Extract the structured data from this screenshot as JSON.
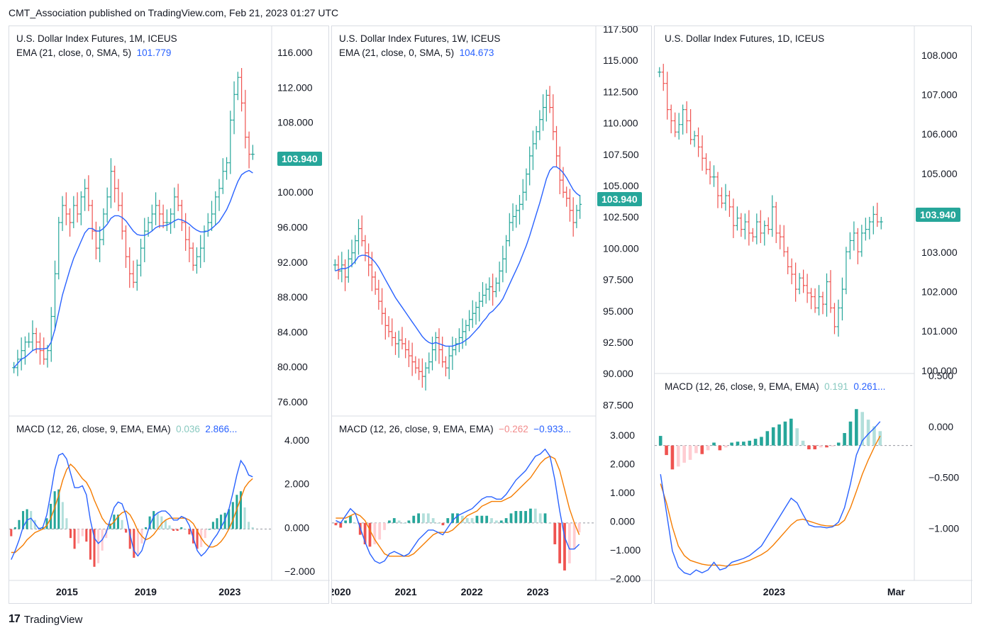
{
  "header": {
    "published": "CMT_Association published on TradingView.com, Feb 21, 2023 01:27 UTC"
  },
  "footer": {
    "brand": "TradingView",
    "logo": "17"
  },
  "colors": {
    "up": "#26a69a",
    "down": "#ef5350",
    "ema": "#2962ff",
    "signal": "#f57c00",
    "badge": "#26a69a",
    "grid": "#d9dce3"
  },
  "panels": [
    {
      "title": "U.S. Dollar Index Futures, 1M, ICEUS",
      "ema_legend": "EMA (21, close, 0, SMA, 5)",
      "ema_value": "101.779",
      "badge": "103.940",
      "price_ticks": [
        "116.000",
        "112.000",
        "108.000",
        "104.000",
        "100.000",
        "96.000",
        "92.000",
        "88.000",
        "84.000",
        "80.000",
        "76.000"
      ],
      "macd_legend": "MACD (12, 26, close, 9, EMA, EMA)",
      "macd_v1": "0.036",
      "macd_v2": "2.866...",
      "macd_ticks": [
        "4.000",
        "2.000",
        "0.000",
        "−2.000"
      ],
      "x_ticks": [
        "2015",
        "2019",
        "2023"
      ]
    },
    {
      "title": "U.S. Dollar Index Futures, 1W, ICEUS",
      "ema_legend": "EMA (21, close, 0, SMA, 5)",
      "ema_value": "104.673",
      "badge": "103.940",
      "price_ticks": [
        "117.500",
        "115.000",
        "112.500",
        "110.000",
        "107.500",
        "105.000",
        "102.500",
        "100.000",
        "97.500",
        "95.000",
        "92.500",
        "90.000",
        "87.500"
      ],
      "macd_legend": "MACD (12, 26, close, 9, EMA, EMA)",
      "macd_v1": "−0.262",
      "macd_v2": "−0.933...",
      "macd_ticks": [
        "3.000",
        "2.000",
        "1.000",
        "0.000",
        "−1.000",
        "−2.000"
      ],
      "x_ticks": [
        "2020",
        "2021",
        "2022",
        "2023"
      ]
    },
    {
      "title": "U.S. Dollar Index Futures, 1D, ICEUS",
      "badge": "103.940",
      "price_ticks": [
        "108.000",
        "107.000",
        "106.000",
        "105.000",
        "104.000",
        "103.000",
        "102.000",
        "101.000",
        "100.000"
      ],
      "macd_legend": "MACD (12, 26, close, 9, EMA, EMA)",
      "macd_v1": "0.191",
      "macd_v2": "0.261...",
      "macd_ticks": [
        "0.500",
        "0.000",
        "−0.500",
        "−1.000"
      ],
      "x_ticks": [
        "2023",
        "Mar"
      ]
    }
  ],
  "chart_data": [
    {
      "type": "bar",
      "title": "U.S. Dollar Index Futures, 1M, ICEUS",
      "ylim": [
        74,
        118
      ],
      "closes": [
        79,
        80,
        81,
        82,
        82,
        83,
        82,
        81,
        80,
        81,
        85,
        90,
        96,
        98,
        97,
        96,
        98,
        97,
        99,
        100,
        98,
        95,
        93,
        94,
        97,
        99,
        102,
        100,
        98,
        95,
        92,
        90,
        89,
        91,
        93,
        95,
        96,
        97,
        98,
        97,
        96,
        96,
        97,
        99,
        98,
        96,
        94,
        93,
        91,
        92,
        93,
        95,
        96,
        97,
        99,
        100,
        102,
        103,
        108,
        111,
        113,
        110,
        106,
        104,
        104
      ],
      "ema": [
        79,
        79.5,
        80,
        80.2,
        80.6,
        81,
        81.2,
        81.2,
        81.2,
        81.3,
        82,
        83.5,
        85.5,
        87.5,
        89,
        90.5,
        91.8,
        92.8,
        93.8,
        94.8,
        95.3,
        95.3,
        95,
        95,
        95.3,
        95.8,
        96.5,
        96.8,
        96.8,
        96.6,
        96.2,
        95.6,
        95,
        94.6,
        94.5,
        94.5,
        94.7,
        95,
        95.4,
        95.6,
        95.6,
        95.7,
        95.9,
        96.2,
        96.4,
        96.3,
        96.1,
        95.8,
        95.4,
        95.1,
        94.9,
        94.9,
        95,
        95.3,
        95.7,
        96.1,
        96.8,
        97.5,
        98.5,
        99.7,
        100.8,
        101.6,
        101.9,
        102.1,
        101.8
      ],
      "macd": {
        "ylim": [
          -2.7,
          5.1
        ],
        "line": [
          -1.7,
          -1.2,
          -0.6,
          0.1,
          0.5,
          0.6,
          0.3,
          0,
          0.1,
          0.8,
          2,
          3.3,
          4.1,
          4.2,
          3.9,
          3.1,
          2.3,
          2.3,
          2.4,
          1.9,
          0.5,
          -0.5,
          -0.8,
          -0.6,
          -0.2,
          0.5,
          1.2,
          1.5,
          1.4,
          0.8,
          -0.3,
          -1.2,
          -1.5,
          -1.2,
          -0.5,
          0.2,
          0.7,
          0.9,
          1,
          1,
          0.8,
          0.5,
          0.5,
          0.7,
          0.6,
          0.2,
          -0.5,
          -1.2,
          -1.5,
          -1.3,
          -1,
          -0.6,
          -0.3,
          0.1,
          0.5,
          1.1,
          2,
          3,
          3.8,
          3.5,
          3,
          2.9
        ],
        "signal": [
          -1.3,
          -1.3,
          -1.1,
          -0.9,
          -0.6,
          -0.4,
          -0.2,
          -0.1,
          0,
          0.2,
          0.6,
          1.2,
          1.9,
          2.7,
          3.3,
          3.6,
          3.4,
          3.1,
          2.8,
          2.6,
          2.2,
          1.6,
          1.1,
          0.6,
          0.3,
          0.2,
          0.4,
          0.7,
          0.9,
          1,
          0.8,
          0.4,
          -0.1,
          -0.4,
          -0.6,
          -0.5,
          -0.3,
          0,
          0.3,
          0.5,
          0.6,
          0.6,
          0.6,
          0.6,
          0.6,
          0.5,
          0.3,
          -0.1,
          -0.5,
          -0.8,
          -1,
          -1,
          -0.9,
          -0.7,
          -0.4,
          0,
          0.5,
          1.1,
          1.7,
          2.3,
          2.6,
          2.8
        ]
      }
    },
    {
      "type": "bar",
      "title": "U.S. Dollar Index Futures, 1W, ICEUS",
      "ylim": [
        87,
        118
      ],
      "closes": [
        99,
        98.5,
        99,
        98,
        99.5,
        100,
        101,
        102,
        101,
        100,
        99,
        98,
        97,
        96,
        95,
        94,
        93.5,
        93,
        92.5,
        92.8,
        92.5,
        92,
        91.5,
        91,
        90.5,
        90.2,
        89.8,
        90.5,
        91,
        92,
        93,
        92,
        91,
        90.5,
        91.5,
        92,
        92.5,
        93,
        93.5,
        94,
        94.5,
        95,
        95.5,
        96,
        96.5,
        97,
        97.2,
        96.8,
        97.5,
        98.5,
        99.5,
        101,
        102.5,
        103,
        103.5,
        104,
        105,
        106.5,
        108,
        109,
        110,
        111,
        112,
        113,
        112,
        110,
        108,
        106,
        105,
        104.5,
        103.5,
        102.5,
        103.5,
        104
      ],
      "ema": [
        98.5,
        98.6,
        98.7,
        98.7,
        98.8,
        99,
        99.3,
        99.7,
        99.8,
        99.8,
        99.7,
        99.5,
        99.2,
        98.8,
        98.3,
        97.8,
        97.3,
        96.8,
        96.3,
        95.9,
        95.5,
        95.1,
        94.7,
        94.3,
        93.9,
        93.5,
        93.1,
        92.8,
        92.6,
        92.5,
        92.6,
        92.5,
        92.4,
        92.3,
        92.3,
        92.3,
        92.4,
        92.5,
        92.6,
        92.8,
        93,
        93.3,
        93.6,
        93.9,
        94.3,
        94.6,
        95,
        95.2,
        95.5,
        95.8,
        96.2,
        96.8,
        97.4,
        98,
        98.6,
        99.2,
        99.9,
        100.6,
        101.4,
        102.3,
        103.2,
        104.1,
        105.1,
        106.1,
        106.8,
        107.1,
        107.1,
        106.9,
        106.6,
        106.2,
        105.7,
        105.2,
        104.9,
        104.7
      ],
      "macd": {
        "ylim": [
          -2.3,
          3.6
        ],
        "line": [
          0.1,
          0,
          0.3,
          0.6,
          0.4,
          -0.2,
          -0.8,
          -1.3,
          -1.6,
          -1.7,
          -1.6,
          -1.3,
          -1.2,
          -1.3,
          -1.4,
          -1.3,
          -1,
          -0.7,
          -0.5,
          -0.3,
          -0.3,
          -0.4,
          -0.5,
          -0.2,
          0.1,
          0.3,
          0.4,
          0.5,
          0.6,
          0.8,
          1,
          1.1,
          1.1,
          1,
          1,
          1.2,
          1.5,
          1.8,
          2,
          2.2,
          2.5,
          2.8,
          2.9,
          3.1,
          2.8,
          1.8,
          0.5,
          -0.6,
          -1.1,
          -1.1,
          -0.9
        ],
        "signal": [
          0.2,
          0.2,
          0.2,
          0.3,
          0.4,
          0.3,
          0.1,
          -0.3,
          -0.7,
          -1,
          -1.3,
          -1.4,
          -1.4,
          -1.4,
          -1.4,
          -1.4,
          -1.3,
          -1.1,
          -0.9,
          -0.7,
          -0.5,
          -0.4,
          -0.4,
          -0.4,
          -0.3,
          -0.1,
          0.1,
          0.3,
          0.4,
          0.5,
          0.7,
          0.8,
          0.9,
          0.9,
          0.9,
          1,
          1.1,
          1.3,
          1.5,
          1.7,
          1.9,
          2.2,
          2.5,
          2.7,
          2.8,
          2.7,
          2.2,
          1.4,
          0.6,
          0,
          -0.5
        ]
      }
    },
    {
      "type": "bar",
      "title": "U.S. Dollar Index Futures, 1D, ICEUS",
      "ylim": [
        99.9,
        108.8
      ],
      "closes": [
        107.8,
        107.5,
        106.8,
        106.5,
        106.2,
        106.4,
        106.8,
        106.5,
        106,
        106.1,
        105.8,
        105.5,
        105.2,
        105,
        105,
        104.5,
        104.3,
        104.5,
        104.2,
        103.7,
        103.9,
        103.6,
        103.8,
        103.5,
        103.4,
        103.8,
        103.5,
        103.7,
        103.6,
        104.2,
        103.5,
        103.4,
        103,
        102.6,
        102.4,
        102,
        102.3,
        102.1,
        101.9,
        101.8,
        101.5,
        101.8,
        101.6,
        102.2,
        101.5,
        101,
        101.5,
        102,
        103,
        103.3,
        103.5,
        103,
        103.5,
        103.6,
        103.8,
        104,
        103.8,
        103.8
      ],
      "macd": {
        "ylim": [
          -1.38,
          0.53
        ],
        "line": [
          -0.3,
          -0.7,
          -1.1,
          -1.27,
          -1.33,
          -1.35,
          -1.3,
          -1.33,
          -1.3,
          -1.22,
          -1.3,
          -1.28,
          -1.22,
          -1.2,
          -1.18,
          -1.15,
          -1.1,
          -1.05,
          -0.95,
          -0.85,
          -0.75,
          -0.65,
          -0.55,
          -0.6,
          -0.72,
          -0.83,
          -0.85,
          -0.85,
          -0.86,
          -0.85,
          -0.8,
          -0.65,
          -0.4,
          -0.1,
          0.05,
          0.12,
          0.18,
          0.25
        ],
        "signal": [
          -0.4,
          -0.6,
          -0.85,
          -1.05,
          -1.15,
          -1.2,
          -1.22,
          -1.24,
          -1.25,
          -1.25,
          -1.25,
          -1.26,
          -1.25,
          -1.24,
          -1.22,
          -1.2,
          -1.17,
          -1.14,
          -1.1,
          -1.04,
          -0.97,
          -0.9,
          -0.83,
          -0.78,
          -0.77,
          -0.79,
          -0.81,
          -0.83,
          -0.84,
          -0.84,
          -0.83,
          -0.78,
          -0.65,
          -0.48,
          -0.3,
          -0.15,
          -0.02,
          0.1
        ]
      }
    }
  ]
}
